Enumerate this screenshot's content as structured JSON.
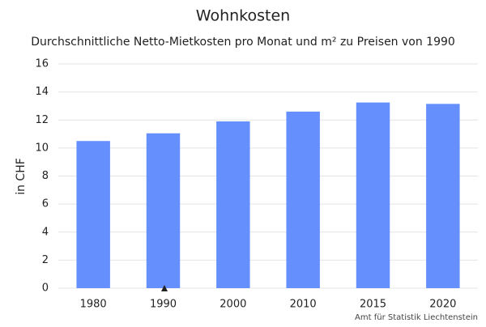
{
  "chart_data": {
    "type": "bar",
    "title": "Wohnkosten",
    "subtitle": "Durchschnittliche Netto-Mietkosten pro Monat und m² zu Preisen von 1990",
    "y_label": "in CHF",
    "source": "Amt für Statistik Liechtenstein",
    "categories": [
      "1980",
      "1990",
      "2000",
      "2010",
      "2015",
      "2020"
    ],
    "values": [
      10.5,
      11.05,
      11.9,
      12.6,
      13.25,
      13.15
    ],
    "color": "#648ffc",
    "ylim": [
      0,
      16
    ],
    "yticks": [
      0,
      2,
      4,
      6,
      8,
      10,
      12,
      14,
      16
    ],
    "grid": true
  }
}
